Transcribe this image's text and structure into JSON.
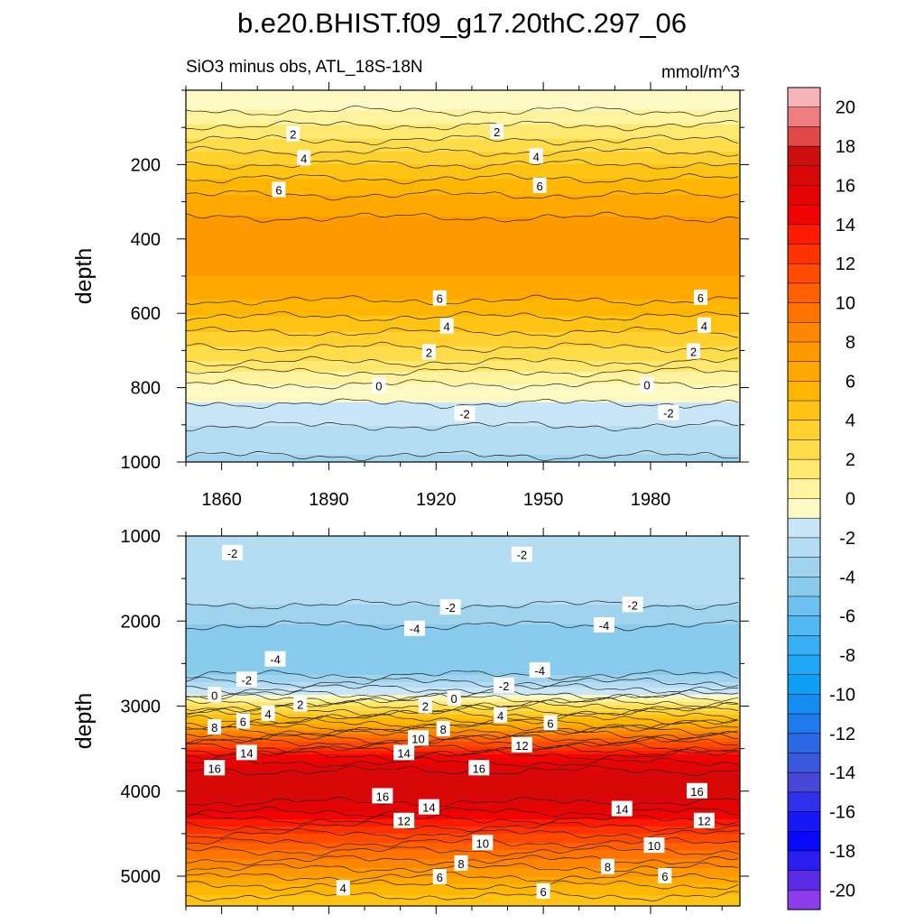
{
  "title": "b.e20.BHIST.f09_g17.20thC.297_06",
  "left_subtitle": "SiO3 minus obs, ATL_18S-18N",
  "right_subtitle": "mmol/m^3",
  "chart_data": [
    {
      "type": "heatmap",
      "panel": "upper",
      "ylabel": "depth",
      "xlim": [
        1850,
        2005
      ],
      "ylim": [
        1000,
        0
      ],
      "xticks": [
        1860,
        1890,
        1920,
        1950,
        1980
      ],
      "yticks": [
        200,
        400,
        600,
        800,
        1000
      ],
      "profile": [
        {
          "depth": 40,
          "value": -0.5
        },
        {
          "depth": 70,
          "value": 0.5
        },
        {
          "depth": 120,
          "value": 1.6
        },
        {
          "depth": 190,
          "value": 3.8
        },
        {
          "depth": 260,
          "value": 5.6
        },
        {
          "depth": 330,
          "value": 6.9
        },
        {
          "depth": 400,
          "value": 7.6
        },
        {
          "depth": 460,
          "value": 7.4
        },
        {
          "depth": 520,
          "value": 6.8
        },
        {
          "depth": 580,
          "value": 5.7
        },
        {
          "depth": 650,
          "value": 4.0
        },
        {
          "depth": 720,
          "value": 2.3
        },
        {
          "depth": 780,
          "value": 0.2
        },
        {
          "depth": 850,
          "value": -1.2
        },
        {
          "depth": 920,
          "value": -2.3
        },
        {
          "depth": 1000,
          "value": -3.2
        }
      ],
      "contour_labels": [
        {
          "text": "2",
          "x": 1880,
          "depth": 118
        },
        {
          "text": "2",
          "x": 1937,
          "depth": 112
        },
        {
          "text": "4",
          "x": 1883,
          "depth": 183
        },
        {
          "text": "4",
          "x": 1948,
          "depth": 178
        },
        {
          "text": "6",
          "x": 1876,
          "depth": 268
        },
        {
          "text": "6",
          "x": 1949,
          "depth": 257
        },
        {
          "text": "6",
          "x": 1921,
          "depth": 560
        },
        {
          "text": "6",
          "x": 1994,
          "depth": 558
        },
        {
          "text": "4",
          "x": 1923,
          "depth": 635
        },
        {
          "text": "4",
          "x": 1995,
          "depth": 633
        },
        {
          "text": "2",
          "x": 1918,
          "depth": 705
        },
        {
          "text": "2",
          "x": 1992,
          "depth": 703
        },
        {
          "text": "0",
          "x": 1904,
          "depth": 795
        },
        {
          "text": "0",
          "x": 1979,
          "depth": 793
        },
        {
          "text": "-2",
          "x": 1928,
          "depth": 870
        },
        {
          "text": "-2",
          "x": 1985,
          "depth": 868
        }
      ]
    },
    {
      "type": "heatmap",
      "panel": "lower",
      "ylabel": "depth",
      "xlim": [
        1850,
        2005
      ],
      "ylim": [
        5350,
        1000
      ],
      "yticks": [
        1000,
        2000,
        3000,
        4000,
        5000
      ],
      "profile": [
        {
          "depth": 1000,
          "value": -2.2
        },
        {
          "depth": 1400,
          "value": -2.7
        },
        {
          "depth": 1800,
          "value": -3.0
        },
        {
          "depth": 2200,
          "value": -4.6
        },
        {
          "depth": 2600,
          "value": -4.4
        },
        {
          "depth": 2850,
          "value": -1.2
        },
        {
          "depth": 3000,
          "value": 2.0
        },
        {
          "depth": 3200,
          "value": 6.0
        },
        {
          "depth": 3400,
          "value": 10.5
        },
        {
          "depth": 3600,
          "value": 14.5
        },
        {
          "depth": 3800,
          "value": 16.4
        },
        {
          "depth": 4000,
          "value": 16.8
        },
        {
          "depth": 4200,
          "value": 15.5
        },
        {
          "depth": 4500,
          "value": 12.0
        },
        {
          "depth": 4800,
          "value": 9.0
        },
        {
          "depth": 5100,
          "value": 6.0
        },
        {
          "depth": 5350,
          "value": 4.0
        }
      ],
      "contour_labels": [
        {
          "text": "-2",
          "x": 1863,
          "depth": 1200
        },
        {
          "text": "-2",
          "x": 1944,
          "depth": 1220
        },
        {
          "text": "-2",
          "x": 1924,
          "depth": 1840
        },
        {
          "text": "-2",
          "x": 1975,
          "depth": 1810
        },
        {
          "text": "-4",
          "x": 1914,
          "depth": 2090
        },
        {
          "text": "-4",
          "x": 1967,
          "depth": 2050
        },
        {
          "text": "-4",
          "x": 1875,
          "depth": 2450
        },
        {
          "text": "-4",
          "x": 1949,
          "depth": 2580
        },
        {
          "text": "-2",
          "x": 1867,
          "depth": 2690
        },
        {
          "text": "-2",
          "x": 1939,
          "depth": 2760
        },
        {
          "text": "0",
          "x": 1858,
          "depth": 2870
        },
        {
          "text": "0",
          "x": 1925,
          "depth": 2910
        },
        {
          "text": "2",
          "x": 1882,
          "depth": 2980
        },
        {
          "text": "2",
          "x": 1917,
          "depth": 3000
        },
        {
          "text": "4",
          "x": 1873,
          "depth": 3090
        },
        {
          "text": "4",
          "x": 1938,
          "depth": 3110
        },
        {
          "text": "6",
          "x": 1866,
          "depth": 3180
        },
        {
          "text": "6",
          "x": 1952,
          "depth": 3200
        },
        {
          "text": "8",
          "x": 1858,
          "depth": 3250
        },
        {
          "text": "8",
          "x": 1922,
          "depth": 3270
        },
        {
          "text": "10",
          "x": 1915,
          "depth": 3380
        },
        {
          "text": "12",
          "x": 1944,
          "depth": 3460
        },
        {
          "text": "14",
          "x": 1867,
          "depth": 3550
        },
        {
          "text": "14",
          "x": 1911,
          "depth": 3550
        },
        {
          "text": "16",
          "x": 1858,
          "depth": 3730
        },
        {
          "text": "16",
          "x": 1932,
          "depth": 3730
        },
        {
          "text": "16",
          "x": 1905,
          "depth": 4060
        },
        {
          "text": "16",
          "x": 1993,
          "depth": 4000
        },
        {
          "text": "14",
          "x": 1918,
          "depth": 4190
        },
        {
          "text": "14",
          "x": 1972,
          "depth": 4210
        },
        {
          "text": "12",
          "x": 1911,
          "depth": 4350
        },
        {
          "text": "12",
          "x": 1995,
          "depth": 4350
        },
        {
          "text": "10",
          "x": 1933,
          "depth": 4610
        },
        {
          "text": "10",
          "x": 1981,
          "depth": 4640
        },
        {
          "text": "8",
          "x": 1927,
          "depth": 4850
        },
        {
          "text": "8",
          "x": 1968,
          "depth": 4890
        },
        {
          "text": "6",
          "x": 1921,
          "depth": 5010
        },
        {
          "text": "6",
          "x": 1984,
          "depth": 5000
        },
        {
          "text": "6",
          "x": 1950,
          "depth": 5180
        },
        {
          "text": "4",
          "x": 1894,
          "depth": 5140
        }
      ]
    }
  ],
  "colorbar": {
    "labels": [
      "20",
      "18",
      "16",
      "14",
      "12",
      "10",
      "8",
      "6",
      "4",
      "2",
      "0",
      "-2",
      "-4",
      "-6",
      "-8",
      "-10",
      "-12",
      "-14",
      "-16",
      "-18",
      "-20"
    ],
    "colors_top_to_bottom": [
      "#F7B4B8",
      "#EE7D80",
      "#E04848",
      "#CC0E0E",
      "#D80808",
      "#E40404",
      "#F20202",
      "#FF1A00",
      "#FF3300",
      "#FF4A00",
      "#FF6000",
      "#FF7300",
      "#FF8600",
      "#FF9900",
      "#FFA900",
      "#FFB600",
      "#FFC314",
      "#FFD02E",
      "#FFDC4A",
      "#FFE870",
      "#FFF3A0",
      "#FFFAC4",
      "#C8E6F7",
      "#B4DCF2",
      "#A0D4EE",
      "#88CBEC",
      "#6EC1EE",
      "#52B8F2",
      "#38AFF4",
      "#1FA8F6",
      "#0E9EF6",
      "#148CF2",
      "#207AEC",
      "#2C68E4",
      "#3A58DC",
      "#4848D8",
      "#3030EC",
      "#1818F6",
      "#0808FA",
      "#2A1EF0",
      "#5A2CE8",
      "#8C3CEA"
    ]
  }
}
